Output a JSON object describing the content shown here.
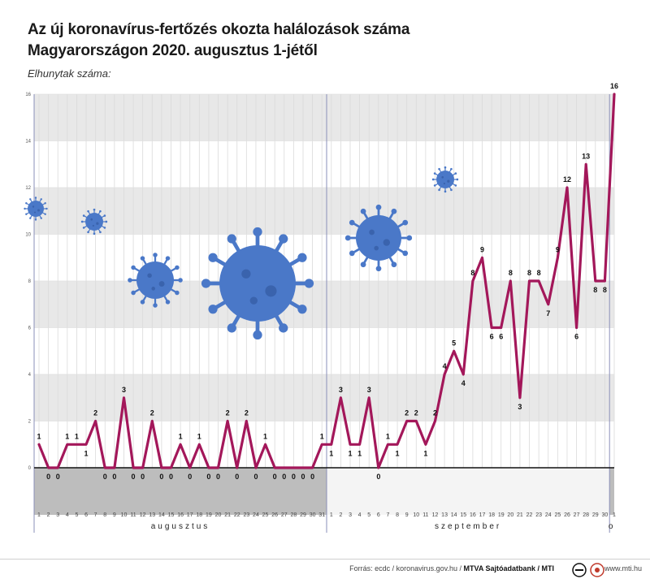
{
  "header": {
    "title_line1": "Az új koronavírus-fertőzés okozta halálozások száma",
    "title_line2": "Magyarországon 2020. augusztus 1-jétől",
    "y_axis_label": "Elhunytak száma:"
  },
  "footer": {
    "source_prefix": "Forrás: ecdc / koronavirus.gov.hu / ",
    "source_bold": "MTVA Sajtóadatbank / MTI",
    "site": "www.mti.hu"
  },
  "colors": {
    "line": "#a3175a",
    "band": "#e8e8e8",
    "virus": "#4a78c8",
    "zero_line": "#111111"
  },
  "chart_data": {
    "type": "line",
    "title": "Az új koronavírus-fertőzés okozta halálozások száma Magyarországon 2020. augusztus 1-jétől",
    "ylabel": "Elhunytak száma:",
    "ylim": [
      0,
      16
    ],
    "yticks": [
      "0",
      "2",
      "4",
      "6",
      "8",
      "10",
      "12",
      "14",
      "16"
    ],
    "grid": true,
    "months": [
      "augusztus",
      "szeptember",
      "o"
    ],
    "x": [
      "1",
      "2",
      "3",
      "4",
      "5",
      "6",
      "7",
      "8",
      "9",
      "10",
      "11",
      "12",
      "13",
      "14",
      "15",
      "16",
      "17",
      "18",
      "19",
      "20",
      "21",
      "22",
      "23",
      "24",
      "25",
      "26",
      "27",
      "28",
      "29",
      "30",
      "31",
      "1",
      "2",
      "3",
      "4",
      "5",
      "6",
      "7",
      "8",
      "9",
      "10",
      "11",
      "12",
      "13",
      "14",
      "15",
      "16",
      "17",
      "18",
      "19",
      "20",
      "21",
      "22",
      "23",
      "24",
      "25",
      "26",
      "27",
      "28",
      "29",
      "30",
      "1"
    ],
    "series": [
      {
        "values": [
          1,
          0,
          0,
          1,
          1,
          1,
          2,
          0,
          0,
          3,
          0,
          0,
          2,
          0,
          0,
          1,
          0,
          1,
          0,
          0,
          2,
          0,
          2,
          0,
          1,
          0,
          0,
          0,
          0,
          0,
          1,
          1,
          3,
          1,
          1,
          3,
          0,
          1,
          1,
          2,
          2,
          1,
          2,
          4,
          5,
          4,
          8,
          9,
          6,
          6,
          8,
          3,
          8,
          8,
          7,
          9,
          12,
          6,
          13,
          8,
          8,
          16
        ]
      }
    ]
  }
}
